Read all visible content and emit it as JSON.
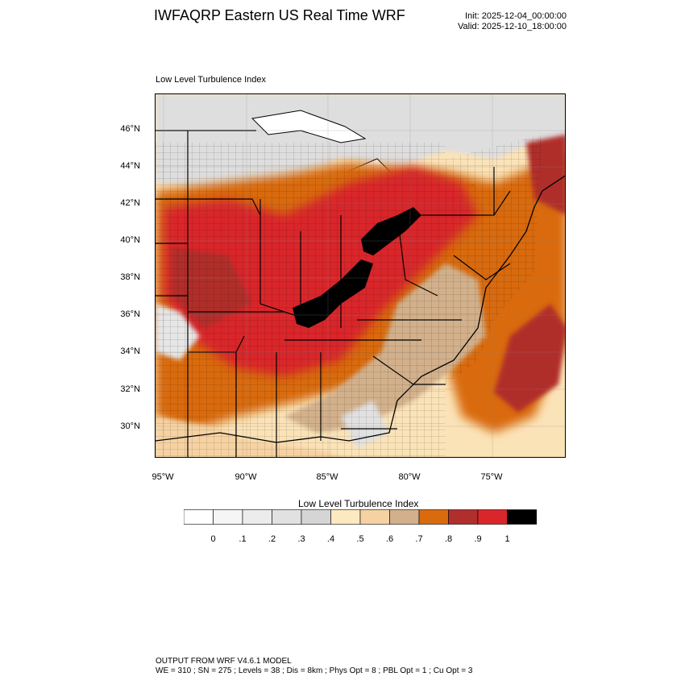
{
  "header": {
    "title": "IWFAQRP Eastern US Real Time WRF",
    "init": "Init: 2025-12-04_00:00:00",
    "valid": "Valid: 2025-12-10_18:00:00"
  },
  "panel_label": "Low Level Turbulence Index",
  "map": {
    "lat_labels": [
      "46°N",
      "44°N",
      "42°N",
      "40°N",
      "38°N",
      "36°N",
      "34°N",
      "32°N",
      "30°N"
    ],
    "lon_labels": [
      "95°W",
      "90°W",
      "85°W",
      "80°W",
      "75°W"
    ],
    "region": "Eastern US"
  },
  "colorbar": {
    "title": "Low Level Turbulence Index",
    "tick_labels": [
      "0",
      ".1",
      ".2",
      ".3",
      ".4",
      ".5",
      ".6",
      ".7",
      ".8",
      ".9",
      "1"
    ],
    "colors": [
      "#ffffff",
      "#f5f5f5",
      "#ececec",
      "#e1e1e1",
      "#d5d5d5",
      "#fde9c0",
      "#f6d2a2",
      "#d2b08b",
      "#d96a0e",
      "#b02e2c",
      "#d9262a",
      "#000000"
    ]
  },
  "footer": {
    "line1": "OUTPUT FROM WRF V4.6.1 MODEL",
    "line2": "WE = 310 ; SN = 275 ; Levels = 38 ; Dis = 8km ; Phys Opt = 8 ; PBL Opt = 1 ; Cu Opt = 3"
  }
}
